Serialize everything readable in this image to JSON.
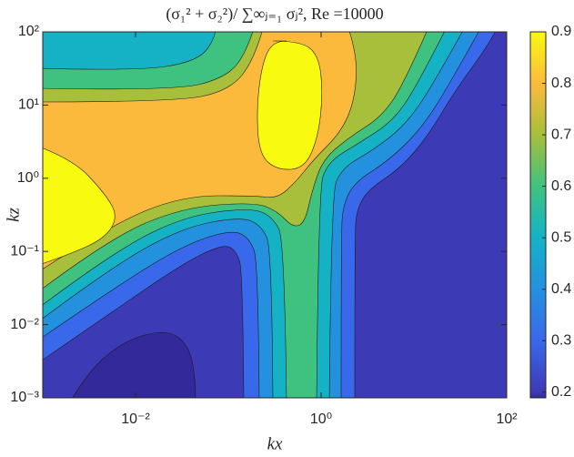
{
  "chart_data": {
    "type": "contour",
    "title": "(σ₁² + σ₂²)/ ∑∞ⱼ₌₁ σⱼ², Re =10000",
    "xlabel": "kx",
    "ylabel": "kz",
    "xscale": "log",
    "yscale": "log",
    "xlim": [
      0.001,
      100
    ],
    "ylim": [
      0.001,
      100
    ],
    "xticks": [
      {
        "value": 0.01,
        "label": "10⁻²"
      },
      {
        "value": 1,
        "label": "10⁰"
      },
      {
        "value": 100,
        "label": "10²"
      }
    ],
    "yticks": [
      {
        "value": 0.001,
        "label": "10⁻³"
      },
      {
        "value": 0.01,
        "label": "10⁻²"
      },
      {
        "value": 0.1,
        "label": "10⁻¹"
      },
      {
        "value": 1,
        "label": "10⁰"
      },
      {
        "value": 10,
        "label": "10¹"
      },
      {
        "value": 100,
        "label": "10²"
      }
    ],
    "levels": [
      0.2,
      0.3,
      0.4,
      0.5,
      0.6,
      0.7,
      0.8,
      0.9
    ],
    "level_colors": [
      "#3d3ab5",
      "#3a68ea",
      "#2491de",
      "#15b2c6",
      "#3fc280",
      "#a7bf3b",
      "#fcba3d",
      "#f8fa10"
    ],
    "below_color": "#33299a",
    "clim": [
      0.189,
      0.9
    ],
    "cticks": [
      0.2,
      0.3,
      0.4,
      0.5,
      0.6,
      0.7,
      0.8,
      0.9
    ]
  }
}
